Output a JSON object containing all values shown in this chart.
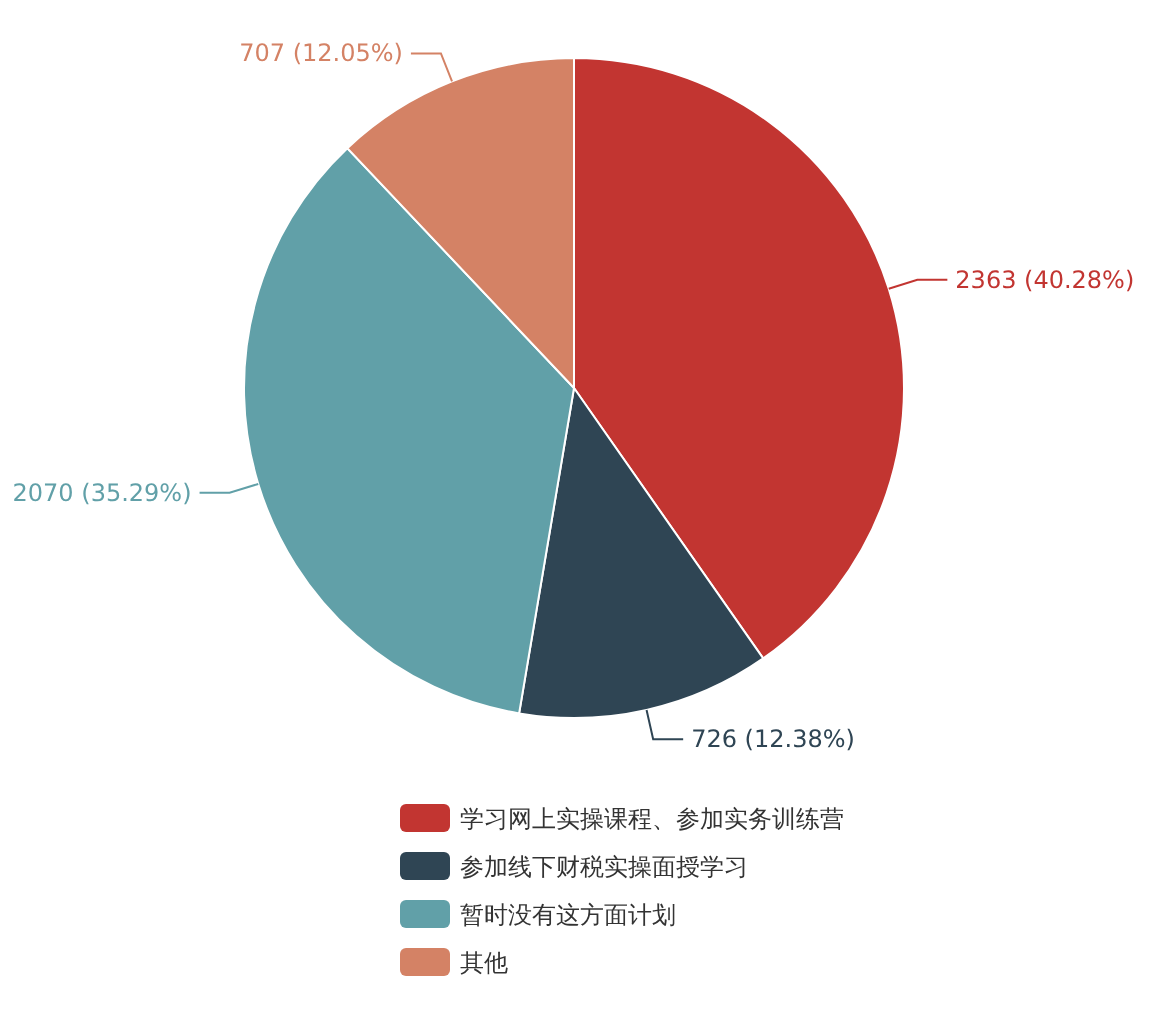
{
  "chart_data": {
    "type": "pie",
    "categories": [
      "学习网上实操课程、参加实务训练营",
      "参加线下财税实操面授学习",
      "暂时没有这方面计划",
      "其他"
    ],
    "values": [
      2363,
      726,
      2070,
      707
    ],
    "colors": [
      "#c23531",
      "#2f4554",
      "#61a0a8",
      "#d48265"
    ],
    "value_labels": [
      "2363 (40.28%)",
      "726 (12.38%)",
      "2070 (35.29%)",
      "707 (12.05%)"
    ],
    "legend": "bottom"
  }
}
